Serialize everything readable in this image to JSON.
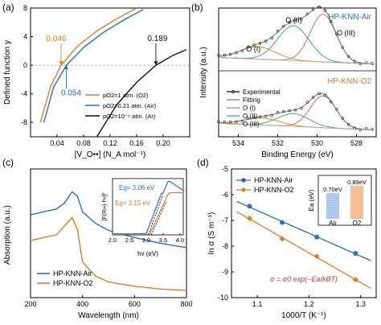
{
  "panels": [
    {
      "label": "(a)"
    },
    {
      "label": "(b)"
    },
    {
      "label": "(c)"
    },
    {
      "label": "(d)"
    }
  ],
  "chart_data": [
    {
      "panel": "(a)",
      "type": "line",
      "xlabel": "[V_O••] (N_A mol⁻¹)",
      "ylabel": "Defined function y",
      "xlim": [
        0.0,
        0.24
      ],
      "ylim": [
        -10,
        8
      ],
      "xticks": [
        "0.04",
        "0.08",
        "0.12",
        "0.16",
        "0.20"
      ],
      "yticks": [
        "-8",
        "-4",
        "0",
        "4",
        "8"
      ],
      "series": [
        {
          "name": "pO2=1 atm. (O2)",
          "color": "#e07b2a",
          "x": [
            0.015,
            0.03,
            0.046,
            0.07,
            0.1,
            0.13,
            0.16
          ],
          "y": [
            -8.0,
            -3.0,
            0.0,
            2.6,
            4.8,
            6.5,
            8.0
          ]
        },
        {
          "name": "pO2=0.21 atm. (Air)",
          "color": "#2c6fb4",
          "x": [
            0.02,
            0.035,
            0.054,
            0.08,
            0.11,
            0.14,
            0.17
          ],
          "y": [
            -8.0,
            -3.0,
            0.0,
            2.5,
            4.6,
            6.3,
            7.8
          ]
        },
        {
          "name": "pO2=10⁻⁹ atm. (Ar)",
          "color": "#111111",
          "x": [
            0.1,
            0.13,
            0.16,
            0.189,
            0.215,
            0.235
          ],
          "y": [
            -10.0,
            -5.5,
            -2.4,
            0.0,
            1.4,
            2.2
          ]
        }
      ],
      "annotations": [
        {
          "text": "0.046",
          "x": 0.046,
          "color": "#e07b2a"
        },
        {
          "text": "0.054",
          "x": 0.054,
          "color": "#2c6fb4"
        },
        {
          "text": "0.189",
          "x": 0.189,
          "color": "#111111"
        }
      ],
      "legend_position": "bottom-right"
    },
    {
      "panel": "(b)",
      "type": "line",
      "xlabel": "Binding Energy (eV)",
      "ylabel": "Intensity (a.u.)",
      "xlim": [
        535,
        527
      ],
      "xticks": [
        "534",
        "532",
        "530",
        "528"
      ],
      "subpanels": [
        {
          "title": "HP-KNN-Air",
          "peaks": [
            {
              "name": "O (I)",
              "center": 533.0,
              "height": 0.22,
              "color": "#cc9a1e"
            },
            {
              "name": "O (II)",
              "center": 531.2,
              "height": 0.62,
              "color": "#3aa88a"
            },
            {
              "name": "O (III)",
              "center": 529.7,
              "height": 0.85,
              "color": "#d46a6a"
            }
          ]
        },
        {
          "title": "HP-KNN-O2",
          "peaks": [
            {
              "name": "O (I)",
              "center": 532.8,
              "height": 0.12,
              "color": "#cc9a1e"
            },
            {
              "name": "O (II)",
              "center": 531.2,
              "height": 0.22,
              "color": "#3aa88a"
            },
            {
              "name": "O (III)",
              "center": 529.7,
              "height": 0.55,
              "color": "#d46a6a"
            }
          ]
        }
      ],
      "legend": [
        "Experimental",
        "Fitting",
        "O (I)",
        "O (II)",
        "O (III)"
      ],
      "legend_position": "bottom-left"
    },
    {
      "panel": "(c)",
      "type": "line",
      "xlabel": "Wavelength (nm)",
      "ylabel": "Absorption (a.u.)",
      "xlim": [
        200,
        800
      ],
      "xticks": [
        "200",
        "400",
        "600",
        "800"
      ],
      "series": [
        {
          "name": "HP-KNN-Air",
          "color": "#2c6fb4",
          "x": [
            200,
            250,
            300,
            330,
            360,
            380,
            400,
            450,
            500,
            600,
            700,
            800
          ],
          "y": [
            0.58,
            0.6,
            0.62,
            0.66,
            0.74,
            0.71,
            0.6,
            0.52,
            0.47,
            0.42,
            0.38,
            0.35
          ]
        },
        {
          "name": "HP-KNN-O2",
          "color": "#e07b2a",
          "x": [
            200,
            250,
            300,
            330,
            360,
            380,
            400,
            450,
            500,
            600,
            700,
            800
          ],
          "y": [
            0.4,
            0.42,
            0.44,
            0.5,
            0.56,
            0.48,
            0.25,
            0.15,
            0.11,
            0.08,
            0.06,
            0.05
          ]
        }
      ],
      "inset": {
        "xlabel": "hν (eV)",
        "ylabel": "[F(R∞)·hν]²",
        "xlim": [
          2.0,
          4.1
        ],
        "xticks": [
          "2.0",
          "2.5",
          "3.0",
          "3.5",
          "4.0"
        ],
        "annotations": [
          {
            "text": "Eg= 3.06 eV",
            "color": "#2c6fb4"
          },
          {
            "text": "Eg= 3.15 eV",
            "color": "#e07b2a"
          }
        ]
      },
      "legend_position": "bottom-left"
    },
    {
      "panel": "(d)",
      "type": "scatter",
      "xlabel": "1000/T (K⁻¹)",
      "ylabel": "ln σ (S m⁻¹)",
      "xlim": [
        1.05,
        1.33
      ],
      "ylim": [
        -10,
        -5
      ],
      "xticks": [
        "1.1",
        "1.2",
        "1.3"
      ],
      "yticks": [
        "-10",
        "-9",
        "-8",
        "-7",
        "-6",
        "-5"
      ],
      "series": [
        {
          "name": "HP-KNN-Air",
          "color": "#2c6fb4",
          "marker": "circle",
          "x": [
            1.085,
            1.148,
            1.215,
            1.29
          ],
          "y": [
            -6.45,
            -7.08,
            -7.65,
            -8.28
          ]
        },
        {
          "name": "HP-KNN-O2",
          "color": "#e07b2a",
          "marker": "diamond",
          "x": [
            1.085,
            1.148,
            1.215,
            1.29
          ],
          "y": [
            -6.92,
            -7.72,
            -8.4,
            -9.3
          ]
        }
      ],
      "equation": "σ = σ0 exp(−Ea/kBT)",
      "inset": {
        "type": "bar",
        "ylabel": "Ea (eV)",
        "categories": [
          "Air",
          "O2"
        ],
        "values": [
          0.7,
          0.89
        ],
        "labels": [
          "0.70eV",
          "0.89eV"
        ],
        "colors": [
          "#a9c3e8",
          "#f3b98a"
        ]
      },
      "legend_position": "top-left"
    }
  ]
}
